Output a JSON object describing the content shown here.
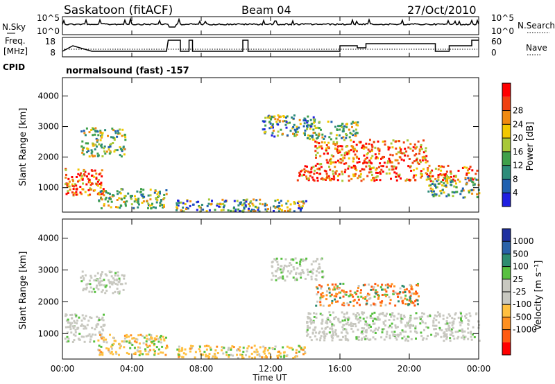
{
  "header": {
    "station": "Saskatoon (fitACF)",
    "beam": "Beam 04",
    "date": "27/Oct/2010"
  },
  "strips": {
    "nsky_label": "N.Sky",
    "nsky_ticks": [
      "10^5",
      "10^0"
    ],
    "nsearch_label": "N.Search",
    "nsearch_ticks": [
      "10^5",
      "10^0"
    ],
    "freq_label_1": "Freq.",
    "freq_label_2": "[MHz]",
    "freq_ticks": [
      "18",
      "8"
    ],
    "nave_label": "Nave",
    "nave_ticks": [
      "60",
      "0"
    ],
    "cpid_label": "CPID",
    "cpid_text": "normalsound (fast) -157"
  },
  "colors": {
    "power_scale": [
      "#1f1fe0",
      "#1e60b0",
      "#2e8c7a",
      "#3fa04a",
      "#a8c838",
      "#f2c800",
      "#f08a10",
      "#f04010",
      "#ff0000"
    ],
    "velocity_scale": [
      "#ff0000",
      "#ff5a10",
      "#ff9020",
      "#ffc040",
      "#c8c8c0",
      "#c8c8c0",
      "#58c040",
      "#2e8c70",
      "#2a62a8",
      "#1e30a0"
    ]
  },
  "chart_data": [
    {
      "type": "heatmap",
      "panel": "power",
      "ylabel": "Slant Range [km]",
      "yticks": [
        "1000",
        "2000",
        "3000",
        "4000"
      ],
      "ylim": [
        200,
        4600
      ],
      "xlim": [
        "00:00",
        "24:00"
      ],
      "colorbar_label": "Power [dB]",
      "colorbar_ticks": [
        "4",
        "8",
        "12",
        "16",
        "20",
        "24",
        "28"
      ],
      "regions": [
        {
          "t0": 0.1,
          "t1": 2.4,
          "r0": 750,
          "r1": 1650,
          "level": "high"
        },
        {
          "t0": 1.0,
          "t1": 3.6,
          "r0": 2050,
          "r1": 3000,
          "level": "medium"
        },
        {
          "t0": 2.0,
          "t1": 6.0,
          "r0": 350,
          "r1": 1000,
          "level": "medium"
        },
        {
          "t0": 6.5,
          "t1": 14.0,
          "r0": 250,
          "r1": 650,
          "level": "low"
        },
        {
          "t0": 11.5,
          "t1": 14.5,
          "r0": 2700,
          "r1": 3400,
          "level": "low"
        },
        {
          "t0": 13.5,
          "t1": 24.0,
          "r0": 1250,
          "r1": 1750,
          "level": "high"
        },
        {
          "t0": 14.5,
          "t1": 21.0,
          "r0": 1800,
          "r1": 2600,
          "level": "high"
        },
        {
          "t0": 14.0,
          "t1": 17.0,
          "r0": 2600,
          "r1": 3200,
          "level": "medium"
        },
        {
          "t0": 21.0,
          "t1": 24.0,
          "r0": 700,
          "r1": 1400,
          "level": "medium"
        }
      ]
    },
    {
      "type": "heatmap",
      "panel": "velocity",
      "ylabel": "Slant Range [km]",
      "yticks": [
        "1000",
        "2000",
        "3000",
        "4000"
      ],
      "ylim": [
        200,
        4600
      ],
      "xlabel": "Time UT",
      "xticks": [
        "00:00",
        "04:00",
        "08:00",
        "12:00",
        "16:00",
        "20:00",
        "00:00"
      ],
      "xlim": [
        "00:00",
        "24:00"
      ],
      "colorbar_label": "Velocity [m s⁻¹]",
      "colorbar_ticks": [
        "1000",
        "500",
        "100",
        "25",
        "-25",
        "-100",
        "-500",
        "-1000"
      ],
      "regions": [
        {
          "t0": 0.1,
          "t1": 2.4,
          "r0": 750,
          "r1": 1650,
          "level": "ground"
        },
        {
          "t0": 1.0,
          "t1": 3.6,
          "r0": 2300,
          "r1": 3000,
          "level": "ground"
        },
        {
          "t0": 2.0,
          "t1": 6.0,
          "r0": 350,
          "r1": 1000,
          "level": "low-neg"
        },
        {
          "t0": 6.5,
          "t1": 14.0,
          "r0": 250,
          "r1": 650,
          "level": "low-neg"
        },
        {
          "t0": 12.0,
          "t1": 15.0,
          "r0": 2700,
          "r1": 3400,
          "level": "ground"
        },
        {
          "t0": 14.0,
          "t1": 24.0,
          "r0": 800,
          "r1": 1700,
          "level": "ground"
        },
        {
          "t0": 14.5,
          "t1": 20.5,
          "r0": 1900,
          "r1": 2600,
          "level": "neg"
        }
      ]
    }
  ]
}
